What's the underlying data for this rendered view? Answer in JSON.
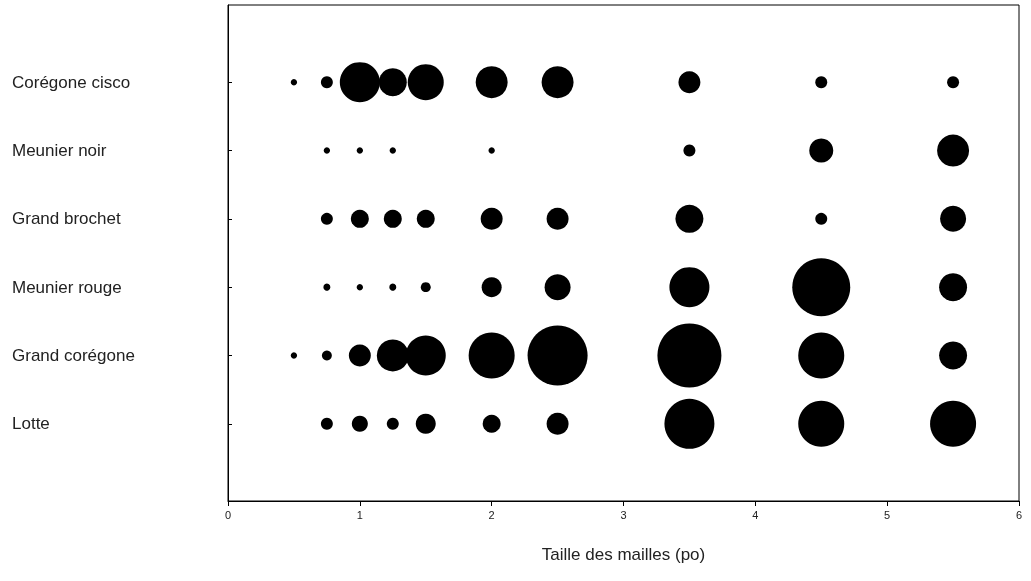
{
  "chart_data": {
    "type": "bubble",
    "orientation": "horizontal",
    "xlabel": "Taille des mailles (po)",
    "xlim": [
      0,
      6
    ],
    "xticks": [
      0,
      1,
      2,
      3,
      4,
      5,
      6
    ],
    "categories": [
      "Corégone cisco",
      "Meunier noir",
      "Grand brochet",
      "Meunier rouge",
      "Grand corégone",
      "Lotte"
    ],
    "grid": false,
    "series": [
      {
        "color": "#000000",
        "values": [
          0.5,
          null,
          null,
          null,
          0.5,
          null
        ],
        "sizes": [
          0.01,
          null,
          null,
          null,
          0.01,
          null
        ]
      },
      {
        "color": "#000000",
        "values": [
          0.75,
          0.75,
          0.75,
          0.75,
          0.75,
          0.75
        ],
        "sizes": [
          0.035,
          0.01,
          0.035,
          0.012,
          0.024,
          0.035
        ]
      },
      {
        "color": "#000000",
        "values": [
          1,
          1,
          1,
          1,
          1,
          1
        ],
        "sizes": [
          0.391,
          0.01,
          0.079,
          0.01,
          0.118,
          0.063
        ]
      },
      {
        "color": "#000000",
        "values": [
          1.25,
          1.25,
          1.25,
          1.25,
          1.25,
          1.25
        ],
        "sizes": [
          0.191,
          0.01,
          0.079,
          0.012,
          0.25,
          0.035
        ]
      },
      {
        "color": "#000000",
        "values": [
          1.5,
          null,
          1.5,
          1.5,
          1.5,
          1.5
        ],
        "sizes": [
          0.316,
          null,
          0.079,
          0.024,
          0.391,
          0.098
        ]
      },
      {
        "color": "#000000",
        "values": [
          2,
          2,
          2,
          2,
          2,
          2
        ],
        "sizes": [
          0.25,
          0.01,
          0.118,
          0.098,
          0.517,
          0.079
        ]
      },
      {
        "color": "#000000",
        "values": [
          2.5,
          null,
          2.5,
          2.5,
          2.5,
          2.5
        ],
        "sizes": [
          0.25,
          null,
          0.118,
          0.165,
          0.879,
          0.118
        ]
      },
      {
        "color": "#000000",
        "values": [
          3.5,
          3.5,
          3.5,
          3.5,
          3.5,
          3.5
        ],
        "sizes": [
          0.118,
          0.035,
          0.191,
          0.391,
          1,
          0.61
        ]
      },
      {
        "color": "#000000",
        "values": [
          4.5,
          4.5,
          4.5,
          4.5,
          4.5,
          4.5
        ],
        "sizes": [
          0.035,
          0.141,
          0.035,
          0.821,
          0.517,
          0.517
        ]
      },
      {
        "color": "#000000",
        "values": [
          5.5,
          5.5,
          5.5,
          5.5,
          5.5,
          5.5
        ],
        "sizes": [
          0.035,
          0.25,
          0.165,
          0.191,
          0.191,
          0.517
        ]
      }
    ]
  }
}
